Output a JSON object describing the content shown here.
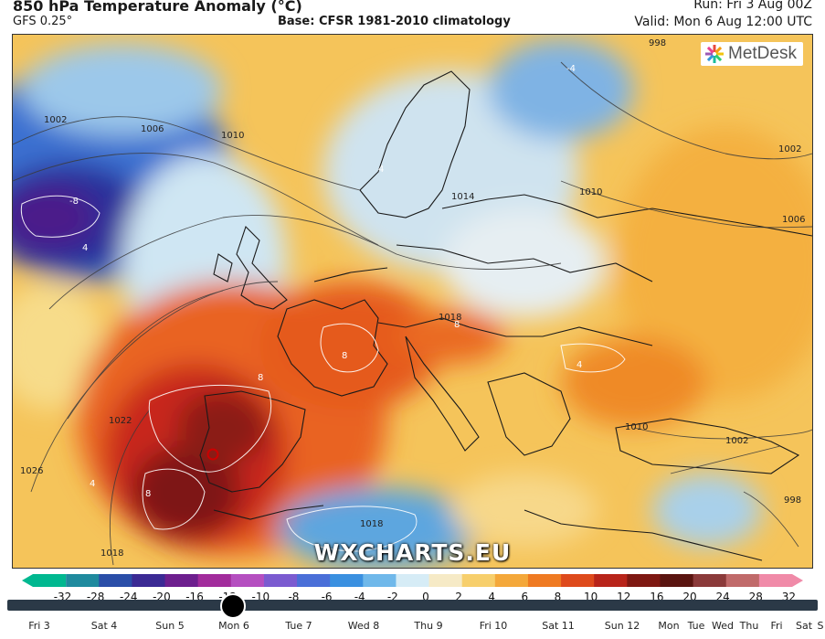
{
  "header": {
    "title": "850 hPa Temperature Anomaly (°C)",
    "model": "GFS 0.25°",
    "base": "Base: CFSR 1981-2010 climatology",
    "run": "Run: Fri 3 Aug 00Z",
    "valid": "Valid: Mon 6 Aug 12:00 UTC"
  },
  "map": {
    "logo": "MetDesk",
    "watermark": "WXCHARTS.EU",
    "isobar_labels": [
      "1002",
      "1006",
      "1010",
      "1014",
      "1018",
      "1022",
      "1026",
      "1018",
      "1006",
      "1002",
      "1010",
      "998",
      "998",
      "1002",
      "1006",
      "1010",
      "1018"
    ],
    "anomaly_labels": [
      "-8",
      "4",
      "-4",
      "8",
      "8",
      "8",
      "4",
      "8",
      "4",
      "4"
    ]
  },
  "colorbar": {
    "ticks": [
      "-32",
      "-28",
      "-24",
      "-20",
      "-16",
      "-12",
      "-10",
      "-8",
      "-6",
      "-4",
      "-2",
      "0",
      "2",
      "4",
      "6",
      "8",
      "10",
      "12",
      "16",
      "20",
      "24",
      "28",
      "32"
    ],
    "colors": [
      "#00b890",
      "#1f8a9e",
      "#2a4ea8",
      "#3b2a94",
      "#6d1f8e",
      "#a22c9c",
      "#b54fc0",
      "#7b5bd0",
      "#4a6fd8",
      "#3a90e0",
      "#6fb8ea",
      "#d6ecf6",
      "#f6eac6",
      "#f7cf6c",
      "#f4a83a",
      "#ef7a22",
      "#de4a1c",
      "#b8241a",
      "#7e1812",
      "#5a1510",
      "#8b3a3a",
      "#c06a6a",
      "#f08aa8"
    ]
  },
  "timeline": {
    "current": "Mon 6",
    "days": [
      "Fri 3",
      "Sat 4",
      "Sun 5",
      "Mon 6",
      "Tue 7",
      "Wed 8",
      "Thu 9",
      "Fri 10",
      "Sat 11",
      "Sun 12",
      "Mon",
      "Tue",
      "Wed",
      "Thu",
      "Fri",
      "Sat",
      "S"
    ]
  }
}
